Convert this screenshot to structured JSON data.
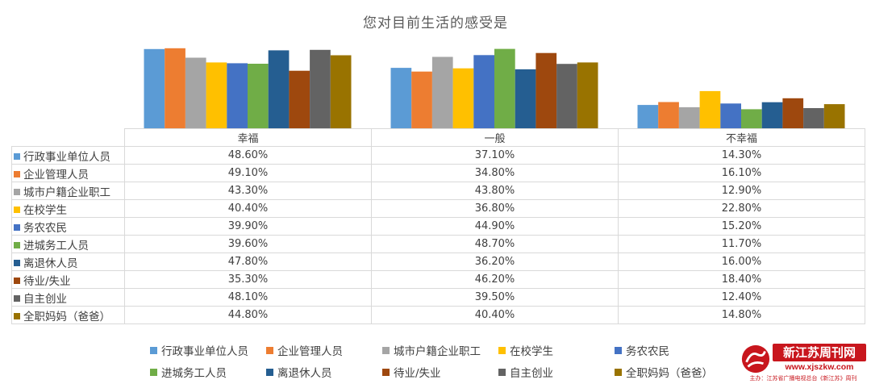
{
  "chart_data": {
    "type": "bar",
    "title": "您对目前生活的感受是",
    "categories": [
      "幸福",
      "一般",
      "不幸福"
    ],
    "series": [
      {
        "name": "行政事业单位人员",
        "color": "#5b9bd5",
        "values": [
          48.6,
          37.1,
          14.3
        ],
        "labels": [
          "48.60%",
          "37.10%",
          "14.30%"
        ]
      },
      {
        "name": "企业管理人员",
        "color": "#ed7d31",
        "values": [
          49.1,
          34.8,
          16.1
        ],
        "labels": [
          "49.10%",
          "34.80%",
          "16.10%"
        ]
      },
      {
        "name": "城市户籍企业职工",
        "color": "#a5a5a5",
        "values": [
          43.3,
          43.8,
          12.9
        ],
        "labels": [
          "43.30%",
          "43.80%",
          "12.90%"
        ]
      },
      {
        "name": "在校学生",
        "color": "#ffc000",
        "values": [
          40.4,
          36.8,
          22.8
        ],
        "labels": [
          "40.40%",
          "36.80%",
          "22.80%"
        ]
      },
      {
        "name": "务农农民",
        "color": "#4472c4",
        "values": [
          39.9,
          44.9,
          15.2
        ],
        "labels": [
          "39.90%",
          "44.90%",
          "15.20%"
        ]
      },
      {
        "name": "进城务工人员",
        "color": "#70ad47",
        "values": [
          39.6,
          48.7,
          11.7
        ],
        "labels": [
          "39.60%",
          "48.70%",
          "11.70%"
        ]
      },
      {
        "name": "离退休人员",
        "color": "#255e91",
        "values": [
          47.8,
          36.2,
          16.0
        ],
        "labels": [
          "47.80%",
          "36.20%",
          "16.00%"
        ]
      },
      {
        "name": "待业/失业",
        "color": "#9e480e",
        "values": [
          35.3,
          46.2,
          18.4
        ],
        "labels": [
          "35.30%",
          "46.20%",
          "18.40%"
        ]
      },
      {
        "name": "自主创业",
        "color": "#636363",
        "values": [
          48.1,
          39.5,
          12.4
        ],
        "labels": [
          "48.10%",
          "39.50%",
          "12.40%"
        ]
      },
      {
        "name": "全职妈妈（爸爸）",
        "color": "#997300",
        "values": [
          44.8,
          40.4,
          14.8
        ],
        "labels": [
          "44.80%",
          "40.40%",
          "14.80%"
        ]
      }
    ],
    "ylim": [
      0,
      50
    ],
    "grid": false,
    "legend_position": "bottom",
    "data_table": true
  },
  "watermark": {
    "name": "新江苏周刊网",
    "url": "www.xjszkw.com",
    "tagline": "主办：江苏省广播电视总台《新江苏》周刊",
    "color": "#c8161d"
  }
}
